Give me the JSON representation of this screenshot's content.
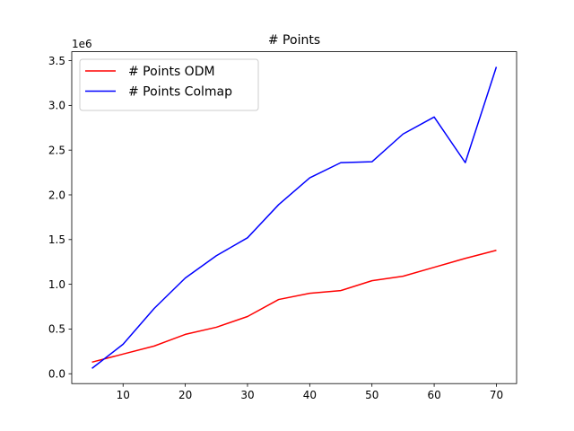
{
  "chart_data": {
    "type": "line",
    "title": "# Points",
    "xlabel": "",
    "ylabel": "",
    "y_offset_label": "1e6",
    "x": [
      5,
      10,
      15,
      20,
      25,
      30,
      35,
      40,
      45,
      50,
      55,
      60,
      65,
      70
    ],
    "series": [
      {
        "name": "# Points ODM",
        "color": "#ff0000",
        "values": [
          0.13,
          0.22,
          0.31,
          0.44,
          0.52,
          0.64,
          0.83,
          0.9,
          0.93,
          1.04,
          1.09,
          1.19,
          1.29,
          1.38
        ]
      },
      {
        "name": "# Points Colmap",
        "color": "#0000ff",
        "values": [
          0.06,
          0.33,
          0.73,
          1.07,
          1.32,
          1.52,
          1.89,
          2.19,
          2.36,
          2.37,
          2.68,
          2.87,
          2.36,
          3.43
        ]
      }
    ],
    "xlim": [
      1.75,
      73.25
    ],
    "ylim": [
      -0.11,
      3.6
    ],
    "xticks": [
      10,
      20,
      30,
      40,
      50,
      60,
      70
    ],
    "xtick_labels": [
      "10",
      "20",
      "30",
      "40",
      "50",
      "60",
      "70"
    ],
    "yticks": [
      0,
      0.5,
      1.0,
      1.5,
      2.0,
      2.5,
      3.0,
      3.5
    ],
    "ytick_labels": [
      "0.0",
      "0.5",
      "1.0",
      "1.5",
      "2.0",
      "2.5",
      "3.0",
      "3.5"
    ],
    "grid": false,
    "legend_position": "top-left"
  }
}
